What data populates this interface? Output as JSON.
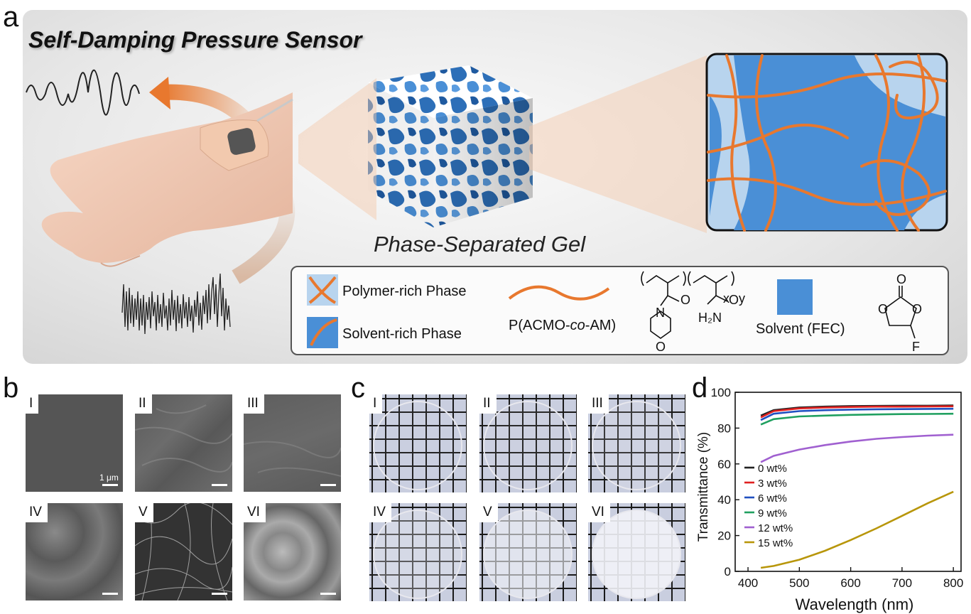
{
  "panel_labels": {
    "a": "a",
    "b": "b",
    "c": "c",
    "d": "d"
  },
  "panel_a": {
    "title": "Self-Damping Pressure Sensor",
    "gel_caption": "Phase-Separated Gel",
    "legend": {
      "polymer_rich": "Polymer-rich Phase",
      "solvent_rich": "Solvent-rich Phase",
      "polymer_name_prefix": "P(ACMO-",
      "polymer_name_italic": "co",
      "polymer_name_suffix": "-AM)",
      "solvent_name": "Solvent (FEC)",
      "sub_x": "x",
      "sub_y": "y",
      "atom_n": "N",
      "atom_o": "O",
      "atom_h2n": "H₂N",
      "atom_f": "F"
    },
    "colors": {
      "orange": "#e8782e",
      "dark_blue": "#4a8fd6",
      "light_blue": "#b8d4ee",
      "gel_blue": "#2d6fb8"
    }
  },
  "panel_b": {
    "tiles": [
      {
        "label": "I",
        "scale": "1 μm"
      },
      {
        "label": "II"
      },
      {
        "label": "III"
      },
      {
        "label": "IV"
      },
      {
        "label": "V"
      },
      {
        "label": "VI"
      }
    ]
  },
  "panel_c": {
    "tiles": [
      {
        "label": "I",
        "opacity": 0.05
      },
      {
        "label": "II",
        "opacity": 0.08
      },
      {
        "label": "III",
        "opacity": 0.15
      },
      {
        "label": "IV",
        "opacity": 0.3
      },
      {
        "label": "V",
        "opacity": 0.6
      },
      {
        "label": "VI",
        "opacity": 0.9
      }
    ]
  },
  "chart_data": {
    "type": "line",
    "title": "",
    "xlabel": "Wavelength (nm)",
    "ylabel": "Transmittance (%)",
    "xlim": [
      375,
      815
    ],
    "ylim": [
      0,
      100
    ],
    "xticks": [
      400,
      500,
      600,
      700,
      800
    ],
    "yticks": [
      0,
      20,
      40,
      60,
      80,
      100
    ],
    "legend_position": "left",
    "series": [
      {
        "name": "0 wt%",
        "color": "#222222",
        "x": [
          425,
          450,
          500,
          550,
          600,
          650,
          700,
          750,
          800
        ],
        "y": [
          87,
          90,
          91.5,
          92,
          92.3,
          92.4,
          92.5,
          92.5,
          92.6
        ]
      },
      {
        "name": "3 wt%",
        "color": "#e02020",
        "x": [
          425,
          450,
          500,
          550,
          600,
          650,
          700,
          750,
          800
        ],
        "y": [
          86,
          89.5,
          91,
          91.5,
          91.8,
          92,
          92,
          92.1,
          92.2
        ]
      },
      {
        "name": "6 wt%",
        "color": "#2050c0",
        "x": [
          425,
          450,
          500,
          550,
          600,
          650,
          700,
          750,
          800
        ],
        "y": [
          84.5,
          88,
          89.5,
          90,
          90.3,
          90.5,
          90.6,
          90.7,
          90.8
        ]
      },
      {
        "name": "9 wt%",
        "color": "#20a060",
        "x": [
          425,
          450,
          500,
          550,
          600,
          650,
          700,
          750,
          800
        ],
        "y": [
          82,
          85,
          86.5,
          87,
          87.4,
          87.6,
          87.8,
          87.9,
          88
        ]
      },
      {
        "name": "12 wt%",
        "color": "#a060d0",
        "x": [
          425,
          450,
          500,
          550,
          600,
          650,
          700,
          750,
          800
        ],
        "y": [
          61,
          64.5,
          68,
          70.5,
          72.5,
          74,
          75,
          75.8,
          76.3
        ]
      },
      {
        "name": "15 wt%",
        "color": "#b8960a",
        "x": [
          425,
          450,
          500,
          550,
          600,
          650,
          700,
          750,
          800
        ],
        "y": [
          2,
          3,
          6.5,
          11.5,
          17.5,
          24,
          31,
          38,
          44.5
        ]
      }
    ]
  }
}
